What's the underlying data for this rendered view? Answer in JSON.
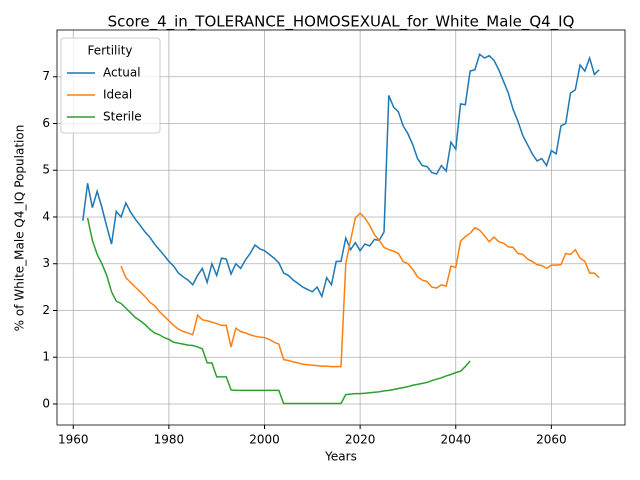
{
  "chart_data": {
    "type": "line",
    "title": "Score_4_in_TOLERANCE_HOMOSEXUAL_for_White_Male_Q4_IQ",
    "x_label": "Years",
    "y_label": "% of White_Male Q4_IQ Population",
    "legend_title": "Fertility",
    "legend_position": "upper left",
    "grid": true,
    "xlim": [
      1956.6,
      2075.4
    ],
    "xticks": [
      1960,
      1980,
      2000,
      2020,
      2040,
      2060
    ],
    "ylim": [
      -0.45,
      8.0
    ],
    "yticks": [
      0,
      1,
      2,
      3,
      4,
      5,
      6,
      7
    ],
    "x": [
      1962,
      1963,
      1964,
      1965,
      1966,
      1967,
      1968,
      1969,
      1970,
      1971,
      1972,
      1973,
      1974,
      1975,
      1976,
      1977,
      1978,
      1979,
      1980,
      1981,
      1982,
      1983,
      1984,
      1985,
      1986,
      1987,
      1988,
      1989,
      1990,
      1991,
      1992,
      1993,
      1994,
      1995,
      1996,
      1997,
      1998,
      1999,
      2000,
      2001,
      2002,
      2003,
      2004,
      2005,
      2006,
      2007,
      2008,
      2009,
      2010,
      2011,
      2012,
      2013,
      2014,
      2015,
      2016,
      2017,
      2018,
      2019,
      2020,
      2021,
      2022,
      2023,
      2024,
      2025,
      2026,
      2027,
      2028,
      2029,
      2030,
      2031,
      2032,
      2033,
      2034,
      2035,
      2036,
      2037,
      2038,
      2039,
      2040,
      2041,
      2042,
      2043,
      2044,
      2045,
      2046,
      2047,
      2048,
      2049,
      2050,
      2051,
      2052,
      2053,
      2054,
      2055,
      2056,
      2057,
      2058,
      2059,
      2060,
      2061,
      2062,
      2063,
      2064,
      2065,
      2066,
      2067,
      2068,
      2069,
      2070
    ],
    "series": [
      {
        "name": "Actual",
        "color": "#1f77b4",
        "values": [
          3.92,
          4.72,
          4.2,
          4.55,
          4.2,
          3.8,
          3.42,
          4.12,
          4.0,
          4.3,
          4.1,
          3.95,
          3.82,
          3.68,
          3.57,
          3.42,
          3.3,
          3.18,
          3.05,
          2.95,
          2.8,
          2.72,
          2.65,
          2.55,
          2.75,
          2.9,
          2.6,
          3.0,
          2.75,
          3.12,
          3.1,
          2.78,
          3.0,
          2.9,
          3.08,
          3.22,
          3.4,
          3.32,
          3.28,
          3.2,
          3.12,
          3.02,
          2.8,
          2.75,
          2.65,
          2.58,
          2.5,
          2.45,
          2.4,
          2.5,
          2.3,
          2.7,
          2.55,
          3.05,
          3.05,
          3.55,
          3.3,
          3.45,
          3.28,
          3.42,
          3.38,
          3.52,
          3.5,
          3.68,
          6.6,
          6.35,
          6.25,
          5.95,
          5.78,
          5.55,
          5.25,
          5.1,
          5.08,
          4.95,
          4.92,
          5.1,
          4.98,
          5.6,
          5.45,
          6.42,
          6.4,
          7.12,
          7.15,
          7.48,
          7.4,
          7.45,
          7.35,
          7.15,
          6.9,
          6.65,
          6.3,
          6.05,
          5.75,
          5.55,
          5.35,
          5.2,
          5.25,
          5.1,
          5.42,
          5.35,
          5.95,
          6.0,
          6.65,
          6.72,
          7.25,
          7.12,
          7.4,
          7.05,
          7.15
        ]
      },
      {
        "name": "Ideal",
        "color": "#ff7f0e",
        "values": [
          null,
          null,
          null,
          null,
          null,
          null,
          null,
          null,
          2.95,
          2.7,
          2.6,
          2.5,
          2.4,
          2.3,
          2.18,
          2.1,
          1.98,
          1.88,
          1.78,
          1.68,
          1.6,
          1.55,
          1.52,
          1.48,
          1.9,
          1.8,
          1.78,
          1.75,
          1.72,
          1.68,
          1.68,
          1.22,
          1.62,
          1.55,
          1.52,
          1.48,
          1.45,
          1.43,
          1.42,
          1.38,
          1.32,
          1.28,
          0.95,
          0.93,
          0.9,
          0.88,
          0.85,
          0.84,
          0.83,
          0.82,
          0.81,
          0.81,
          0.8,
          0.8,
          0.8,
          3.0,
          3.5,
          3.98,
          4.08,
          3.98,
          3.82,
          3.62,
          3.5,
          3.35,
          3.3,
          3.27,
          3.22,
          3.05,
          3.0,
          2.88,
          2.72,
          2.65,
          2.62,
          2.5,
          2.48,
          2.55,
          2.52,
          2.95,
          2.92,
          3.48,
          3.58,
          3.65,
          3.77,
          3.72,
          3.6,
          3.47,
          3.57,
          3.47,
          3.44,
          3.36,
          3.35,
          3.22,
          3.2,
          3.1,
          3.05,
          2.98,
          2.96,
          2.9,
          2.97,
          2.97,
          2.98,
          3.22,
          3.2,
          3.3,
          3.12,
          3.05,
          2.8,
          2.8,
          2.7
        ]
      },
      {
        "name": "Sterile",
        "color": "#2ca02c",
        "values": [
          null,
          3.98,
          3.5,
          3.2,
          3.0,
          2.75,
          2.4,
          2.2,
          2.15,
          2.05,
          1.95,
          1.85,
          1.78,
          1.7,
          1.6,
          1.52,
          1.48,
          1.42,
          1.38,
          1.32,
          1.3,
          1.28,
          1.26,
          1.25,
          1.22,
          1.18,
          0.88,
          0.88,
          0.58,
          0.58,
          0.58,
          0.3,
          0.29,
          0.29,
          0.29,
          0.29,
          0.29,
          0.29,
          0.29,
          0.29,
          0.29,
          0.29,
          0.01,
          0.01,
          0.01,
          0.01,
          0.01,
          0.01,
          0.01,
          0.01,
          0.01,
          0.01,
          0.01,
          0.01,
          0.01,
          0.2,
          0.21,
          0.22,
          0.22,
          0.23,
          0.24,
          0.25,
          0.26,
          0.28,
          0.29,
          0.31,
          0.33,
          0.35,
          0.37,
          0.4,
          0.42,
          0.44,
          0.46,
          0.5,
          0.53,
          0.56,
          0.6,
          0.63,
          0.67,
          0.7,
          0.8,
          0.92,
          null,
          null,
          null,
          null,
          null,
          null,
          null,
          null,
          null,
          null,
          null,
          null,
          null,
          null,
          null,
          null,
          null,
          null,
          null,
          null,
          null,
          null,
          null,
          null,
          null,
          null,
          null
        ]
      }
    ]
  }
}
